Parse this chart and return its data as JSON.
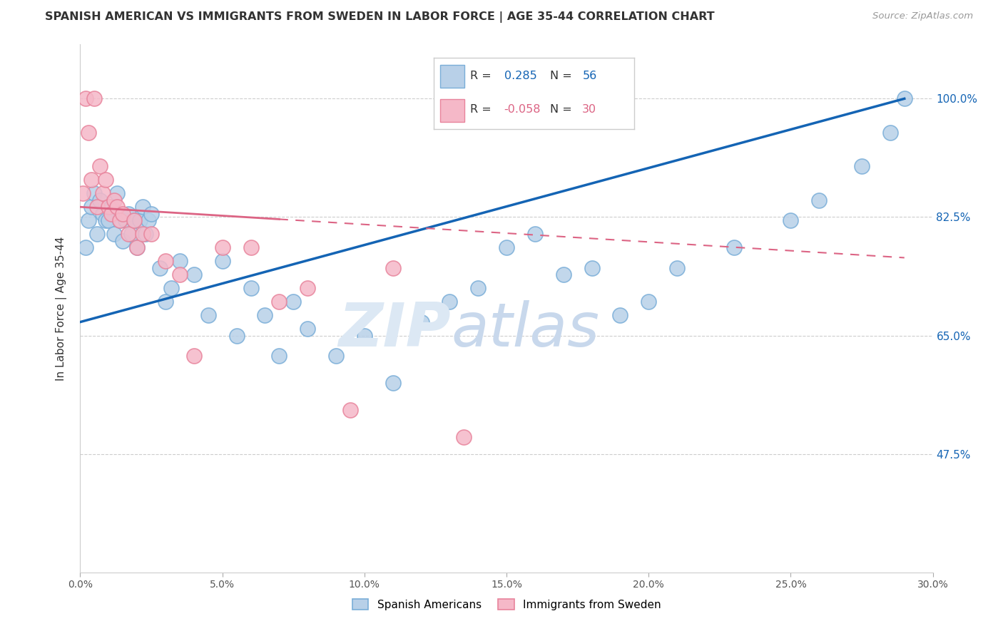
{
  "title": "SPANISH AMERICAN VS IMMIGRANTS FROM SWEDEN IN LABOR FORCE | AGE 35-44 CORRELATION CHART",
  "source": "Source: ZipAtlas.com",
  "ylabel": "In Labor Force | Age 35-44",
  "xlim": [
    0.0,
    30.0
  ],
  "ylim": [
    30.0,
    108.0
  ],
  "yticks": [
    47.5,
    65.0,
    82.5,
    100.0
  ],
  "xticks": [
    0.0,
    5.0,
    10.0,
    15.0,
    20.0,
    25.0,
    30.0
  ],
  "blue_R": 0.285,
  "blue_N": 56,
  "pink_R": -0.058,
  "pink_N": 30,
  "blue_color": "#b8d0e8",
  "pink_color": "#f5b8c8",
  "blue_edge": "#7aaed8",
  "pink_edge": "#e8849c",
  "trend_blue": "#1464b4",
  "trend_pink": "#dc6484",
  "background_color": "#ffffff",
  "grid_color": "#c8c8c8",
  "blue_x": [
    0.2,
    0.3,
    0.4,
    0.5,
    0.6,
    0.7,
    0.8,
    0.9,
    1.0,
    1.1,
    1.2,
    1.3,
    1.4,
    1.5,
    1.6,
    1.7,
    1.8,
    1.9,
    2.0,
    2.1,
    2.2,
    2.3,
    2.4,
    2.5,
    2.8,
    3.0,
    3.2,
    3.5,
    4.0,
    4.5,
    5.0,
    5.5,
    6.0,
    6.5,
    7.0,
    7.5,
    8.0,
    9.0,
    10.0,
    11.0,
    12.0,
    13.0,
    14.0,
    15.0,
    16.0,
    17.0,
    18.0,
    19.0,
    20.0,
    21.0,
    23.0,
    25.0,
    26.0,
    27.5,
    28.5,
    29.0
  ],
  "blue_y": [
    78.0,
    82.0,
    84.0,
    86.0,
    80.0,
    85.0,
    83.0,
    82.0,
    82.0,
    84.0,
    80.0,
    86.0,
    82.0,
    79.0,
    82.0,
    83.0,
    80.0,
    82.0,
    78.0,
    82.0,
    84.0,
    80.0,
    82.0,
    83.0,
    75.0,
    70.0,
    72.0,
    76.0,
    74.0,
    68.0,
    76.0,
    65.0,
    72.0,
    68.0,
    62.0,
    70.0,
    66.0,
    62.0,
    65.0,
    58.0,
    67.0,
    70.0,
    72.0,
    78.0,
    80.0,
    74.0,
    75.0,
    68.0,
    70.0,
    75.0,
    78.0,
    82.0,
    85.0,
    90.0,
    95.0,
    100.0
  ],
  "pink_x": [
    0.1,
    0.2,
    0.3,
    0.4,
    0.5,
    0.6,
    0.7,
    0.8,
    0.9,
    1.0,
    1.1,
    1.2,
    1.3,
    1.4,
    1.5,
    1.7,
    1.9,
    2.0,
    2.2,
    2.5,
    3.0,
    3.5,
    4.0,
    5.0,
    6.0,
    7.0,
    8.0,
    9.5,
    11.0,
    13.5
  ],
  "pink_y": [
    86.0,
    100.0,
    95.0,
    88.0,
    100.0,
    84.0,
    90.0,
    86.0,
    88.0,
    84.0,
    83.0,
    85.0,
    84.0,
    82.0,
    83.0,
    80.0,
    82.0,
    78.0,
    80.0,
    80.0,
    76.0,
    74.0,
    62.0,
    78.0,
    78.0,
    70.0,
    72.0,
    54.0,
    75.0,
    50.0
  ],
  "legend_label_blue": "Spanish Americans",
  "legend_label_pink": "Immigrants from Sweden"
}
